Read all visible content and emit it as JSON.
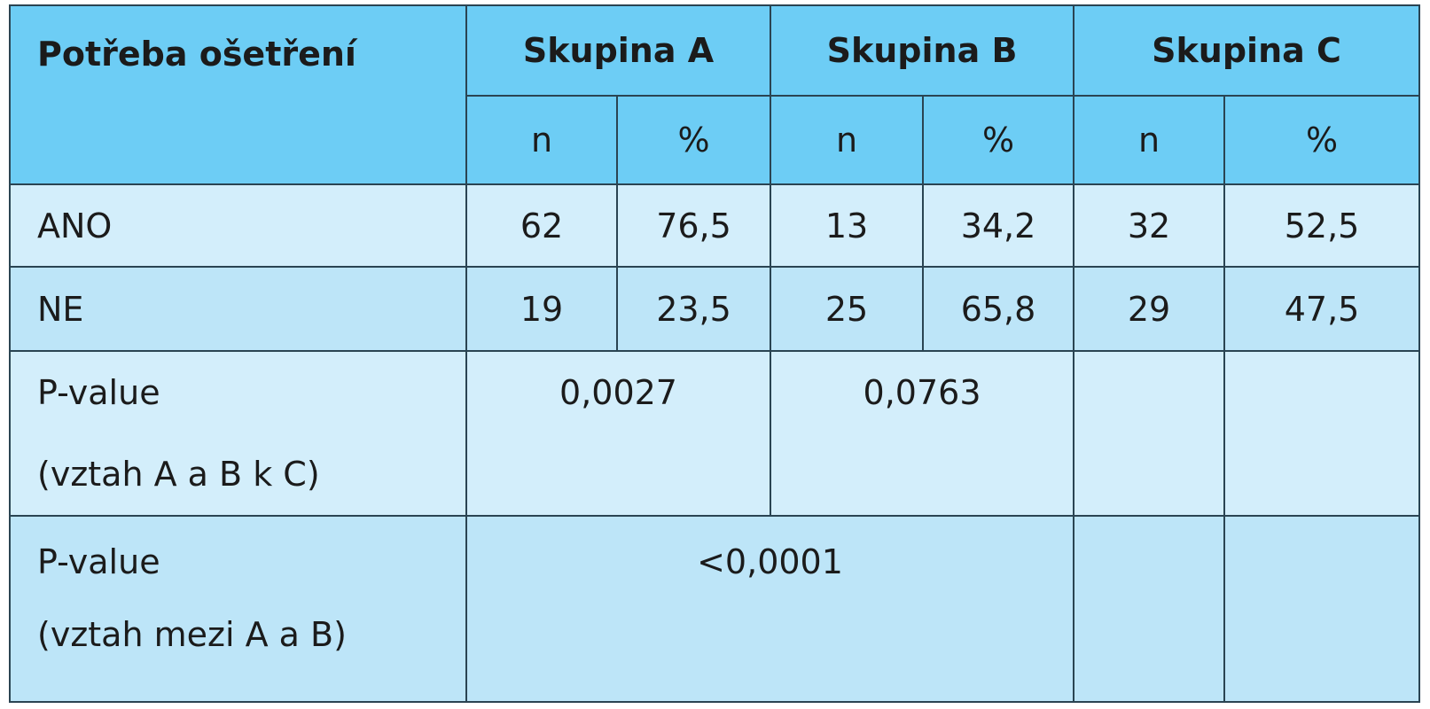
{
  "table": {
    "header": {
      "label": "Potřeba ošetření",
      "groups": [
        "Skupina A",
        "Skupina B",
        "Skupina C"
      ],
      "subheaders": [
        "n",
        "%",
        "n",
        "%",
        "n",
        "%"
      ]
    },
    "rows": [
      {
        "label": "ANO",
        "cells": [
          "62",
          "76,5",
          "13",
          "34,2",
          "32",
          "52,5"
        ]
      },
      {
        "label": "NE",
        "cells": [
          "19",
          "23,5",
          "25",
          "65,8",
          "29",
          "47,5"
        ]
      }
    ],
    "p_values": [
      {
        "label": "P-value",
        "note": "(vztah A a B k C)",
        "values": [
          "0,0027",
          "0,0763"
        ]
      },
      {
        "label": "P-value",
        "note": "(vztah mezi A a B)",
        "value": "<0,0001"
      }
    ]
  }
}
